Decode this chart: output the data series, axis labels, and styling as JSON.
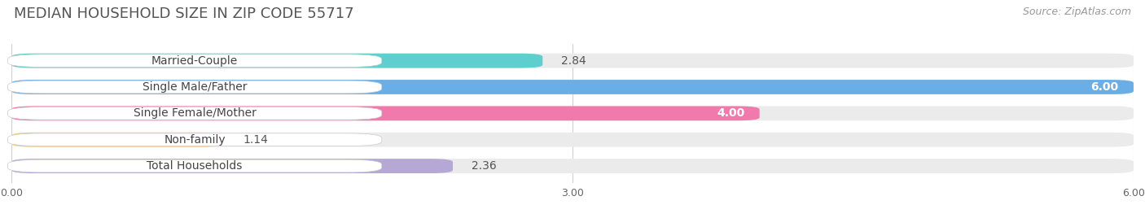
{
  "title": "MEDIAN HOUSEHOLD SIZE IN ZIP CODE 55717",
  "source": "Source: ZipAtlas.com",
  "categories": [
    "Married-Couple",
    "Single Male/Father",
    "Single Female/Mother",
    "Non-family",
    "Total Households"
  ],
  "values": [
    2.84,
    6.0,
    4.0,
    1.14,
    2.36
  ],
  "bar_colors": [
    "#5ecece",
    "#6aaee8",
    "#f07aab",
    "#f5c98a",
    "#b5a8d5"
  ],
  "xlim": [
    0,
    6.0
  ],
  "xticks": [
    0.0,
    3.0,
    6.0
  ],
  "xtick_labels": [
    "0.00",
    "3.00",
    "6.00"
  ],
  "value_inside": [
    false,
    true,
    true,
    false,
    false
  ],
  "value_labels": [
    "2.84",
    "6.00",
    "4.00",
    "1.14",
    "2.36"
  ],
  "background_color": "#ffffff",
  "bar_bg_color": "#ebebeb",
  "title_fontsize": 13,
  "source_fontsize": 9,
  "label_fontsize": 10,
  "category_fontsize": 10,
  "tick_fontsize": 9
}
